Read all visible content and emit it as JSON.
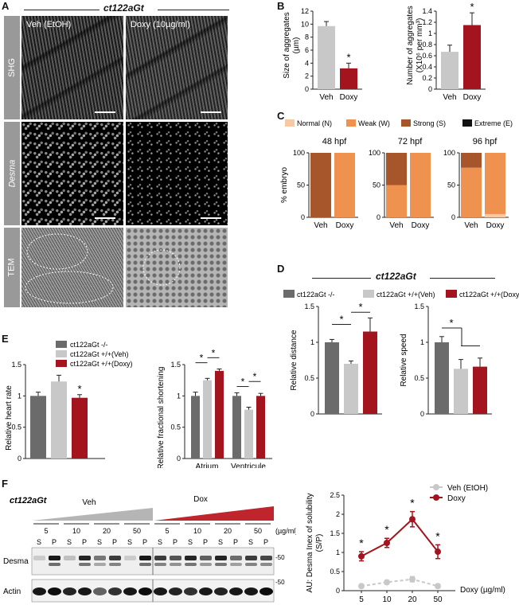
{
  "panel_letters": {
    "a": "A",
    "b": "B",
    "c": "C",
    "d": "D",
    "e": "E",
    "f": "F"
  },
  "colors": {
    "ko": "#6b6b6b",
    "veh": "#c8c8c8",
    "doxy": "#a3141e",
    "normal": "#f6c8a4",
    "weak": "#f0924f",
    "strong": "#a7562b",
    "extreme": "#111111"
  },
  "panel_a": {
    "header": "ct122aGt",
    "col_veh": "Veh (EtOH)",
    "col_doxy": "Doxy (10µg/ml)",
    "row_shg": "SHG",
    "row_desma": "Desma",
    "row_tem": "TEM"
  },
  "panel_b": {
    "size_ylabel_1": "Size of aggregates",
    "size_ylabel_2": "(µm)",
    "num_ylabel_1": "Number of aggregates",
    "num_ylabel_2": "(X10⁶ per mm³)"
  },
  "panel_c": {
    "legend": [
      "Normal (N)",
      "Weak (W)",
      "Strong (S)",
      "Extreme (E)"
    ],
    "ylabel": "% embryo",
    "titles": [
      "48 hpf",
      "72 hpf",
      "96 hpf"
    ]
  },
  "panel_d": {
    "header": "ct122aGt",
    "legend": [
      "ct122aGt -/-",
      "ct122aGt +/+(Veh)",
      "ct122aGt +/+(Doxy)"
    ],
    "ylabel_distance": "Relative distance",
    "ylabel_speed": "Relative speed"
  },
  "panel_e": {
    "legend": [
      "ct122aGt -/-",
      "ct122aGt +/+(Veh)",
      "ct122aGt +/+(Doxy)"
    ],
    "ylabel_hr": "Relative heart rate",
    "ylabel_fs": "Relative fractional shortening"
  },
  "panel_f": {
    "genotype": "ct122aGt",
    "veh_label": "Veh",
    "dox_label": "Dox",
    "conc_unit": "(µg/ml)",
    "concs": [
      "5",
      "10",
      "20",
      "50",
      "5",
      "10",
      "20",
      "50"
    ],
    "lanes": [
      "S",
      "P",
      "S",
      "P",
      "S",
      "P",
      "S",
      "P",
      "S",
      "P",
      "S",
      "P",
      "S",
      "P",
      "S",
      "P"
    ],
    "blot_desma": "Desma",
    "blot_actin": "Actin",
    "mw_desma": "-50",
    "mw_actin": "-50",
    "sol_ylabel_1": "AU: Desma Inex of solubility",
    "sol_ylabel_2": "(S/P)",
    "sol_xunit": "Doxy (µg/ml)"
  },
  "chart_data": [
    {
      "id": "B-size",
      "type": "bar",
      "categories": [
        "Veh",
        "Doxy"
      ],
      "values": [
        9.7,
        3.2
      ],
      "errors": [
        0.7,
        0.8
      ],
      "ylim": [
        0,
        12
      ],
      "yticks": [
        0,
        2,
        4,
        6,
        8,
        10,
        12
      ],
      "significance": [
        "",
        "*"
      ],
      "ylabel": "Size of aggregates (µm)"
    },
    {
      "id": "B-number",
      "type": "bar",
      "categories": [
        "Veh",
        "Doxy"
      ],
      "values": [
        0.67,
        1.15
      ],
      "errors": [
        0.12,
        0.22
      ],
      "ylim": [
        0,
        1.4
      ],
      "yticks": [
        0,
        0.2,
        0.4,
        0.6,
        0.8,
        1.0,
        1.2,
        1.4
      ],
      "significance": [
        "",
        "*"
      ],
      "ylabel": "Number of aggregates (X10⁶ per mm³)"
    },
    {
      "id": "C",
      "type": "bar",
      "stacked": true,
      "ylabel": "% embryo",
      "ylim": [
        0,
        100
      ],
      "yticks": [
        0,
        50,
        100
      ],
      "groups": [
        {
          "title": "48 hpf",
          "categories": [
            "Veh",
            "Doxy"
          ],
          "series": [
            {
              "name": "Normal (N)",
              "values": [
                0,
                0
              ]
            },
            {
              "name": "Weak (W)",
              "values": [
                0,
                100
              ]
            },
            {
              "name": "Strong (S)",
              "values": [
                100,
                0
              ]
            },
            {
              "name": "Extreme (E)",
              "values": [
                0,
                0
              ]
            }
          ]
        },
        {
          "title": "72 hpf",
          "categories": [
            "Veh",
            "Doxy"
          ],
          "series": [
            {
              "name": "Normal (N)",
              "values": [
                0,
                0
              ]
            },
            {
              "name": "Weak (W)",
              "values": [
                50,
                100
              ]
            },
            {
              "name": "Strong (S)",
              "values": [
                50,
                0
              ]
            },
            {
              "name": "Extreme (E)",
              "values": [
                0,
                0
              ]
            }
          ]
        },
        {
          "title": "96 hpf",
          "categories": [
            "Veh",
            "Doxy"
          ],
          "series": [
            {
              "name": "Normal (N)",
              "values": [
                0,
                5
              ]
            },
            {
              "name": "Weak (W)",
              "values": [
                77,
                95
              ]
            },
            {
              "name": "Strong (S)",
              "values": [
                23,
                0
              ]
            },
            {
              "name": "Extreme (E)",
              "values": [
                0,
                0
              ]
            }
          ]
        }
      ]
    },
    {
      "id": "D-distance",
      "type": "bar",
      "categories": [
        "ct122aGt -/-",
        "ct122aGt +/+(Veh)",
        "ct122aGt +/+(Doxy)"
      ],
      "values": [
        1.0,
        0.7,
        1.15
      ],
      "errors": [
        0.04,
        0.04,
        0.19
      ],
      "ylim": [
        0,
        1.5
      ],
      "yticks": [
        0,
        0.5,
        1.0,
        1.5
      ],
      "ylabel": "Relative distance"
    },
    {
      "id": "D-speed",
      "type": "bar",
      "categories": [
        "ct122aGt -/-",
        "ct122aGt +/+(Veh)",
        "ct122aGt +/+(Doxy)"
      ],
      "values": [
        1.0,
        0.63,
        0.66
      ],
      "errors": [
        0.08,
        0.13,
        0.12
      ],
      "ylim": [
        0,
        1.5
      ],
      "yticks": [
        0,
        0.5,
        1.0,
        1.5
      ],
      "ylabel": "Relative speed"
    },
    {
      "id": "E-heart-rate",
      "type": "bar",
      "categories": [
        "ct122aGt -/-",
        "ct122aGt +/+(Veh)",
        "ct122aGt +/+(Doxy)"
      ],
      "values": [
        1.0,
        1.23,
        0.97
      ],
      "errors": [
        0.06,
        0.1,
        0.05
      ],
      "ylim": [
        0,
        1.5
      ],
      "yticks": [
        0,
        0.5,
        1.0,
        1.5
      ],
      "significance": [
        "",
        "",
        "*"
      ],
      "ylabel": "Relative heart rate"
    },
    {
      "id": "E-fractional-shortening",
      "type": "bar",
      "categories": [
        "Atrium",
        "Ventricule"
      ],
      "series": [
        {
          "name": "ct122aGt -/-",
          "values": [
            1.0,
            1.0
          ],
          "errors": [
            0.06,
            0.05
          ]
        },
        {
          "name": "ct122aGt +/+(Veh)",
          "values": [
            1.25,
            0.78
          ],
          "errors": [
            0.03,
            0.04
          ]
        },
        {
          "name": "ct122aGt +/+(Doxy)",
          "values": [
            1.4,
            1.0
          ],
          "errors": [
            0.03,
            0.04
          ]
        }
      ],
      "ylim": [
        0,
        1.5
      ],
      "yticks": [
        0,
        0.5,
        1.0,
        1.5
      ],
      "ylabel": "Relative fractional shortening"
    },
    {
      "id": "F-solubility",
      "type": "line",
      "x": [
        "5",
        "10",
        "20",
        "50"
      ],
      "series": [
        {
          "name": "Veh (EtOH)",
          "values": [
            0.12,
            0.22,
            0.3,
            0.12
          ],
          "errors": [
            0.04,
            0.05,
            0.07,
            0.05
          ]
        },
        {
          "name": "Doxy",
          "values": [
            0.9,
            1.25,
            1.87,
            1.02
          ],
          "errors": [
            0.12,
            0.12,
            0.2,
            0.18
          ]
        }
      ],
      "ylim": [
        0,
        2.5
      ],
      "yticks": [
        0,
        0.5,
        1.0,
        1.5,
        2.0,
        2.5
      ],
      "significance": [
        "*",
        "*",
        "*",
        "*"
      ],
      "xlabel": "Doxy (µg/ml)",
      "ylabel": "AU: Desma Inex of solubility (S/P)"
    }
  ]
}
